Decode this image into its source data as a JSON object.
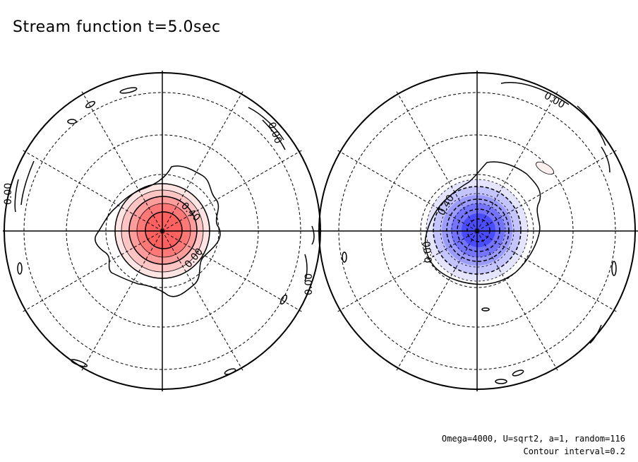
{
  "title": "Stream function t=5.0sec",
  "footer": {
    "params": "Omega=4000, U=sqrt2, a=1, random=116",
    "contour_interval": "Contour interval=0.2"
  },
  "panels": [
    {
      "name": "left-hemisphere",
      "sign": "positive",
      "fill_color": "#ff6060",
      "labels": [
        "0.40",
        "0.00",
        "0.00",
        "0.00",
        "0.00"
      ]
    },
    {
      "name": "right-hemisphere",
      "sign": "negative",
      "fill_color": "#5050ff",
      "labels": [
        "0.40",
        "0.00",
        "0.00"
      ]
    }
  ]
}
